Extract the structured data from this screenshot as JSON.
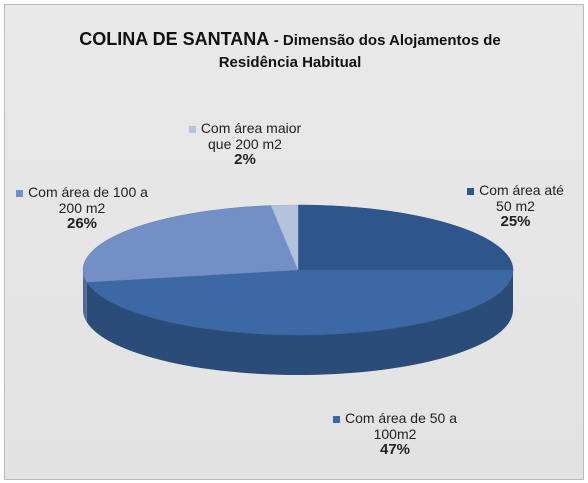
{
  "chart_data": {
    "type": "pie3d",
    "title": "COLINA DE SANTANA",
    "subtitle": "- Dimensão dos Alojamentos de Residência Habitual",
    "categories": [
      "Com área até 50 m2",
      "Com área de 50 a 100m2",
      "Com área de 100 a 200 m2",
      "Com área maior que 200 m2"
    ],
    "values": [
      25,
      47,
      26,
      2
    ],
    "value_labels": [
      "25%",
      "47%",
      "26%",
      "2%"
    ],
    "colors": [
      "#2f568c",
      "#3c68a6",
      "#7390c6",
      "#b4c3dd"
    ]
  }
}
